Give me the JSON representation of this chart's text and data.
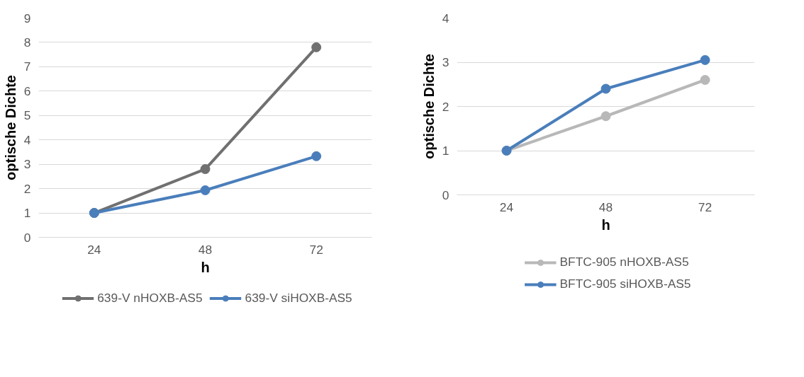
{
  "chart_data": [
    {
      "type": "line",
      "xlabel": "h",
      "ylabel": "optische Dichte",
      "categories": [
        "24",
        "48",
        "72"
      ],
      "ylim": [
        0,
        9
      ],
      "yticks": [
        0,
        1,
        2,
        3,
        4,
        5,
        6,
        7,
        8,
        9
      ],
      "grid": "y",
      "legend": "bottom",
      "marker": "circle",
      "line_style": "solid",
      "series": [
        {
          "name": "639-V nHOXB-AS5",
          "color": "#707070",
          "values": [
            1,
            2.8,
            7.8
          ]
        },
        {
          "name": "639-V siHOXB-AS5",
          "color": "#4a7ebb",
          "values": [
            1,
            1.93,
            3.33
          ]
        }
      ]
    },
    {
      "type": "line",
      "xlabel": "h",
      "ylabel": "optische Dichte",
      "categories": [
        "24",
        "48",
        "72"
      ],
      "ylim": [
        0,
        4
      ],
      "yticks": [
        0,
        1,
        2,
        3,
        4
      ],
      "grid": "y",
      "legend": "bottom",
      "marker": "circle",
      "line_style": "solid",
      "series": [
        {
          "name": "BFTC-905 nHOXB-AS5",
          "color": "#b8b8b8",
          "values": [
            1,
            1.78,
            2.6
          ]
        },
        {
          "name": "BFTC-905 siHOXB-AS5",
          "color": "#4a7ebb",
          "values": [
            1,
            2.4,
            3.05
          ]
        }
      ]
    }
  ]
}
